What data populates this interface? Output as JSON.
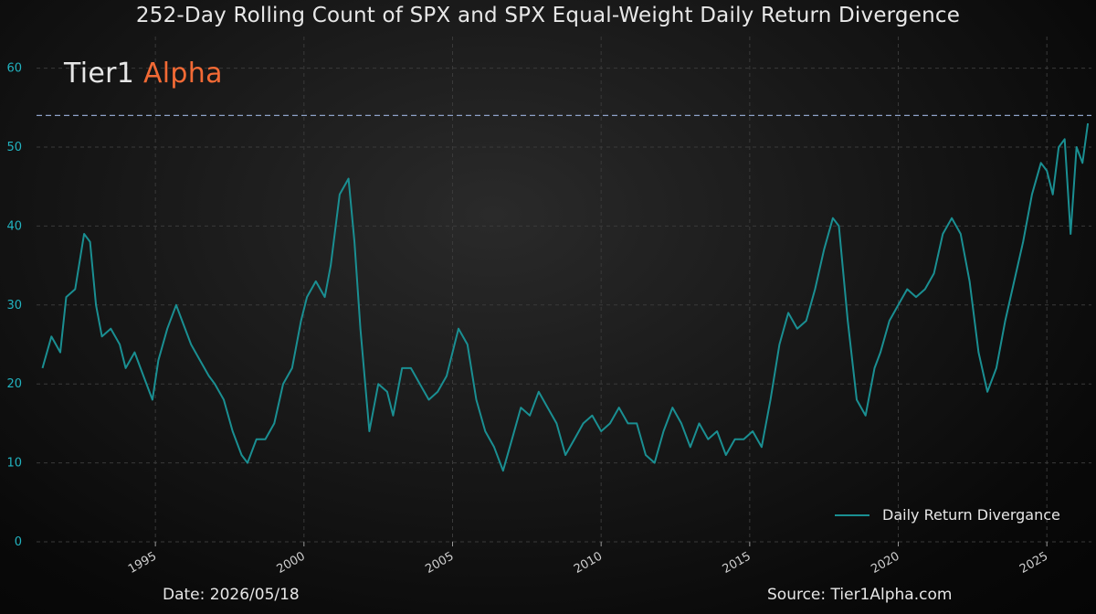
{
  "chart_data": {
    "type": "line",
    "title": "252-Day Rolling Count of SPX and SPX Equal-Weight Daily Return Divergence",
    "brand": {
      "part1": "Tier1",
      "part2": "Alpha"
    },
    "xlabel": "",
    "ylabel": "",
    "xlim": [
      1991.0,
      2026.5
    ],
    "ylim": [
      0,
      64
    ],
    "x_ticks": [
      "1995",
      "2000",
      "2005",
      "2010",
      "2015",
      "2020",
      "2025"
    ],
    "y_ticks": [
      "0",
      "10",
      "20",
      "30",
      "40",
      "50",
      "60"
    ],
    "grid": true,
    "legend_position": "bottom-right",
    "reference_line": {
      "y": 54,
      "color": "#8ea2c8",
      "style": "dashed"
    },
    "series": [
      {
        "name": "Daily Return Divergance",
        "color": "#1a8f92",
        "x": [
          1991.2,
          1991.5,
          1991.8,
          1992.0,
          1992.3,
          1992.6,
          1992.8,
          1993.0,
          1993.2,
          1993.5,
          1993.8,
          1994.0,
          1994.3,
          1994.6,
          1994.9,
          1995.1,
          1995.4,
          1995.7,
          1995.9,
          1996.2,
          1996.5,
          1996.8,
          1997.0,
          1997.3,
          1997.6,
          1997.9,
          1998.1,
          1998.4,
          1998.7,
          1999.0,
          1999.3,
          1999.6,
          1999.9,
          2000.1,
          2000.4,
          2000.7,
          2000.9,
          2001.2,
          2001.5,
          2001.7,
          2001.9,
          2002.2,
          2002.5,
          2002.8,
          2003.0,
          2003.3,
          2003.6,
          2003.9,
          2004.2,
          2004.5,
          2004.8,
          2005.0,
          2005.2,
          2005.5,
          2005.8,
          2006.1,
          2006.4,
          2006.7,
          2007.0,
          2007.3,
          2007.6,
          2007.9,
          2008.2,
          2008.5,
          2008.8,
          2009.1,
          2009.4,
          2009.7,
          2010.0,
          2010.3,
          2010.6,
          2010.9,
          2011.2,
          2011.5,
          2011.8,
          2012.1,
          2012.4,
          2012.7,
          2013.0,
          2013.3,
          2013.6,
          2013.9,
          2014.2,
          2014.5,
          2014.8,
          2015.1,
          2015.4,
          2015.7,
          2016.0,
          2016.3,
          2016.6,
          2016.9,
          2017.2,
          2017.5,
          2017.8,
          2018.0,
          2018.3,
          2018.6,
          2018.9,
          2019.2,
          2019.4,
          2019.7,
          2020.0,
          2020.3,
          2020.6,
          2020.9,
          2021.2,
          2021.5,
          2021.8,
          2022.1,
          2022.4,
          2022.7,
          2023.0,
          2023.3,
          2023.6,
          2023.9,
          2024.2,
          2024.5,
          2024.8,
          2025.0,
          2025.2,
          2025.4,
          2025.6,
          2025.8,
          2026.0,
          2026.2,
          2026.38
        ],
        "values": [
          22,
          26,
          24,
          31,
          32,
          39,
          38,
          30,
          26,
          27,
          25,
          22,
          24,
          21,
          18,
          23,
          27,
          30,
          28,
          25,
          23,
          21,
          20,
          18,
          14,
          11,
          10,
          13,
          13,
          15,
          20,
          22,
          28,
          31,
          33,
          31,
          35,
          44,
          46,
          38,
          27,
          14,
          20,
          19,
          16,
          22,
          22,
          20,
          18,
          19,
          21,
          24,
          27,
          25,
          18,
          14,
          12,
          9,
          13,
          17,
          16,
          19,
          17,
          15,
          11,
          13,
          15,
          16,
          14,
          15,
          17,
          15,
          15,
          11,
          10,
          14,
          17,
          15,
          12,
          15,
          13,
          14,
          11,
          13,
          13,
          14,
          12,
          18,
          25,
          29,
          27,
          28,
          32,
          37,
          41,
          40,
          28,
          18,
          16,
          22,
          24,
          28,
          30,
          32,
          31,
          32,
          34,
          39,
          41,
          39,
          33,
          24,
          19,
          22,
          28,
          33,
          38,
          44,
          48,
          47,
          44,
          50,
          51,
          39,
          50,
          48,
          53
        ]
      }
    ]
  },
  "legend": {
    "label": "Daily Return Divergance"
  },
  "footer": {
    "date": "Date: 2026/05/18",
    "source": "Source: Tier1Alpha.com"
  }
}
